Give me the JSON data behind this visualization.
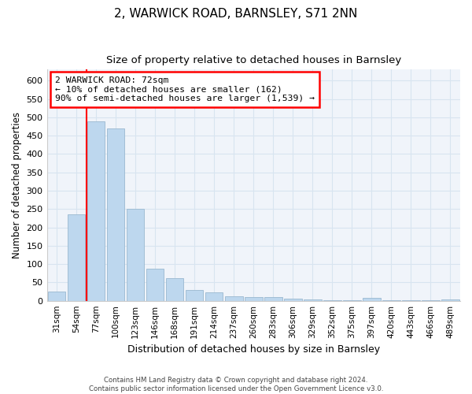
{
  "title": "2, WARWICK ROAD, BARNSLEY, S71 2NN",
  "subtitle": "Size of property relative to detached houses in Barnsley",
  "xlabel": "Distribution of detached houses by size in Barnsley",
  "ylabel": "Number of detached properties",
  "categories": [
    "31sqm",
    "54sqm",
    "77sqm",
    "100sqm",
    "123sqm",
    "146sqm",
    "168sqm",
    "191sqm",
    "214sqm",
    "237sqm",
    "260sqm",
    "283sqm",
    "306sqm",
    "329sqm",
    "352sqm",
    "375sqm",
    "397sqm",
    "420sqm",
    "443sqm",
    "466sqm",
    "489sqm"
  ],
  "values": [
    25,
    235,
    490,
    470,
    250,
    88,
    62,
    30,
    22,
    12,
    10,
    10,
    5,
    3,
    2,
    2,
    7,
    2,
    1,
    1,
    4
  ],
  "bar_color": "#bdd7ee",
  "bar_edge_color": "#9ab8d0",
  "red_line_x": 1.5,
  "annotation_text": "2 WARWICK ROAD: 72sqm\n← 10% of detached houses are smaller (162)\n90% of semi-detached houses are larger (1,539) →",
  "annotation_box_color": "white",
  "annotation_box_edge_color": "red",
  "red_line_color": "red",
  "ylim": [
    0,
    630
  ],
  "yticks": [
    0,
    50,
    100,
    150,
    200,
    250,
    300,
    350,
    400,
    450,
    500,
    550,
    600
  ],
  "grid_color": "#d8e4f0",
  "background_color": "#f0f4fa",
  "footer": "Contains HM Land Registry data © Crown copyright and database right 2024.\nContains public sector information licensed under the Open Government Licence v3.0.",
  "title_fontsize": 11,
  "subtitle_fontsize": 9.5
}
